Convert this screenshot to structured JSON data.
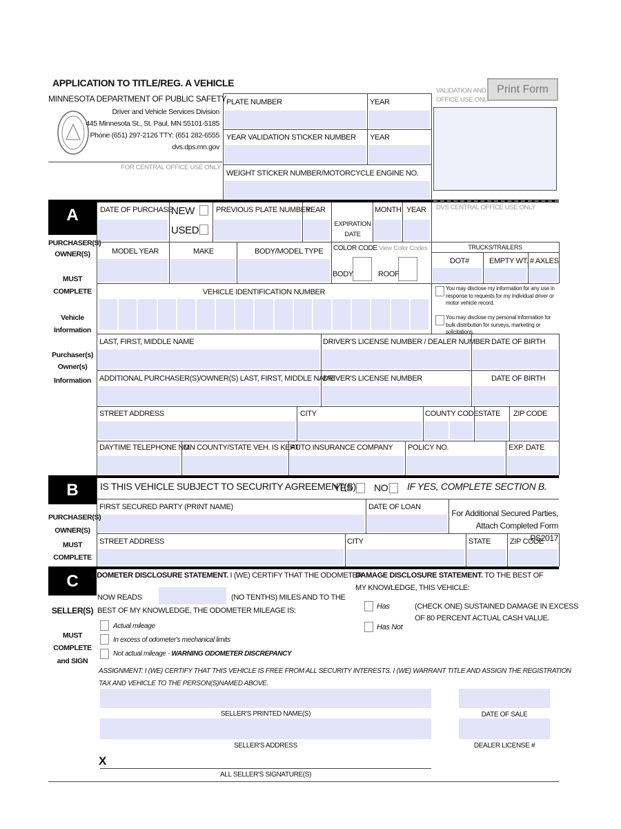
{
  "header": {
    "title": "APPLICATION TO TITLE/REG. A VEHICLE",
    "agency": "MINNESOTA DEPARTMENT OF PUBLIC SAFETY",
    "division": "Driver and Vehicle Services Division",
    "address": "445 Minnesota St., St. Paul, MN 55101-5185",
    "phone": "Phone (651) 297-2126 TTY: (651 282-6555",
    "website": "dvs.dps.mn.gov",
    "central_office_note": "FOR CENTRAL OFFICE USE ONLY"
  },
  "office": {
    "validation_note": "VALIDATION AND OFFICE USE ONLY",
    "print_button": "Print Form",
    "dvs_note": "DVS CENTRAL OFFICE USE ONLY"
  },
  "plate_fields": {
    "plate_number": "PLATE NUMBER",
    "plate_year": "YEAR",
    "sticker_number": "YEAR VALIDATION STICKER NUMBER",
    "sticker_year": "YEAR",
    "weight_sticker": "WEIGHT STICKER NUMBER/MOTORCYCLE ENGINE NO."
  },
  "section_a": {
    "letter": "A",
    "side_labels": [
      "PURCHASER(S)",
      "OWNER(S)",
      "MUST",
      "COMPLETE",
      "Vehicle",
      "Information",
      "Purchaser(s)",
      "Owner(s)",
      "Information"
    ],
    "date_of_purchase": "DATE OF PURCHASE",
    "new": "NEW",
    "used": "USED",
    "previous_plate": "PREVIOUS PLATE NUMBER",
    "previous_year": "YEAR",
    "expiration_date": "EXPIRATION DATE",
    "month": "MONTH",
    "exp_year": "YEAR",
    "model_year": "MODEL YEAR",
    "make": "MAKE",
    "body_model": "BODY/MODEL TYPE",
    "color_code": "COLOR CODE",
    "view_color_codes": "View Color Codes",
    "body": "BODY",
    "roof": "ROOF",
    "trucks_trailers": "TRUCKS/TRAILERS",
    "dot": "DOT#",
    "empty_wt": "EMPTY WT.",
    "axles": "# AXLES",
    "vin": "VEHICLE IDENTIFICATION NUMBER",
    "privacy_1": "You may disclose my information for any use in response to requests for my individual driver or motor vehicle record.",
    "privacy_2": "You may disclose my personal information for bulk distribution for surveys, marketing or solicitations.",
    "name": "LAST, FIRST, MIDDLE NAME",
    "license_dealer": "DRIVER'S LICENSE NUMBER / DEALER NUMBER",
    "dob": "DATE OF BIRTH",
    "additional_name": "ADDITIONAL PURCHASER(S)/OWNER(S) LAST, FIRST, MIDDLE NAME",
    "license": "DRIVER'S LICENSE NUMBER",
    "dob_2": "DATE OF BIRTH",
    "street": "STREET ADDRESS",
    "city": "CITY",
    "county_code": "COUNTY CODE",
    "state": "STATE",
    "zip": "ZIP CODE",
    "telephone": "DAYTIME TELEPHONE NO.",
    "county_kept": "MN COUNTY/STATE VEH. IS KEPT",
    "insurance": "AUTO INSURANCE COMPANY",
    "policy": "POLICY NO.",
    "exp_date": "EXP. DATE"
  },
  "section_b": {
    "letter": "B",
    "side_labels": [
      "PURCHASER(S)",
      "OWNER(S)",
      "MUST",
      "COMPLETE"
    ],
    "question": "IS THIS VEHICLE SUBJECT TO SECURITY AGREEMENT(S)?",
    "yes": "YES",
    "no": "NO",
    "if_yes": "IF YES, COMPLETE SECTION B.",
    "secured_party": "FIRST SECURED PARTY (PRINT NAME)",
    "date_of_loan": "DATE OF LOAN",
    "additional_note": "For Additional Secured Parties, Attach Completed Form PS2017",
    "street": "STREET ADDRESS",
    "city": "CITY",
    "state": "STATE",
    "zip": "ZIP CODE"
  },
  "section_c": {
    "letter": "C",
    "side_labels": [
      "SELLER(S)",
      "MUST",
      "COMPLETE",
      "and SIGN"
    ],
    "odometer_heading": "ODOMETER DISCLOSURE STATEMENT.",
    "odometer_text": "I (WE) CERTIFY THAT THE ODOMETER",
    "now_reads": "NOW READS",
    "no_tenths": "(NO TENTHS) MILES AND TO THE",
    "best_knowledge": "BEST OF MY KNOWLEDGE, THE ODOMETER MILEAGE IS:",
    "actual": "Actual mileage",
    "in_excess": "In excess of odometer's mechanical limits",
    "not_actual": "Not actual mileage - ",
    "warning": "WARNING ODOMETER DISCREPANCY",
    "damage_heading": "DAMAGE DISCLOSURE STATEMENT.",
    "damage_text_1": "TO THE BEST OF",
    "damage_text_2": "MY KNOWLEDGE, THIS VEHICLE:",
    "has": "Has",
    "has_not": "Has Not",
    "check_one_1": "(CHECK ONE) SUSTAINED DAMAGE IN EXCESS",
    "check_one_2": "OF 80 PERCENT ACTUAL CASH VALUE.",
    "assignment_1": "ASSIGNMENT: I (WE) CERTIFY THAT THIS VEHICLE IS FREE FROM ALL SECURITY INTERESTS. I (WE) WARRANT TITLE AND ASSIGN THE REGISTRATION",
    "assignment_2": "TAX AND VEHICLE TO THE PERSON(S)NAMED ABOVE.",
    "printed_names": "SELLER'S PRINTED NAME(S)",
    "date_of_sale": "DATE OF SALE",
    "seller_address": "SELLER'S ADDRESS",
    "dealer_license": "DEALER LICENSE #",
    "x_mark": "X",
    "signatures": "ALL SELLER'S SIGNATURE(S)"
  }
}
